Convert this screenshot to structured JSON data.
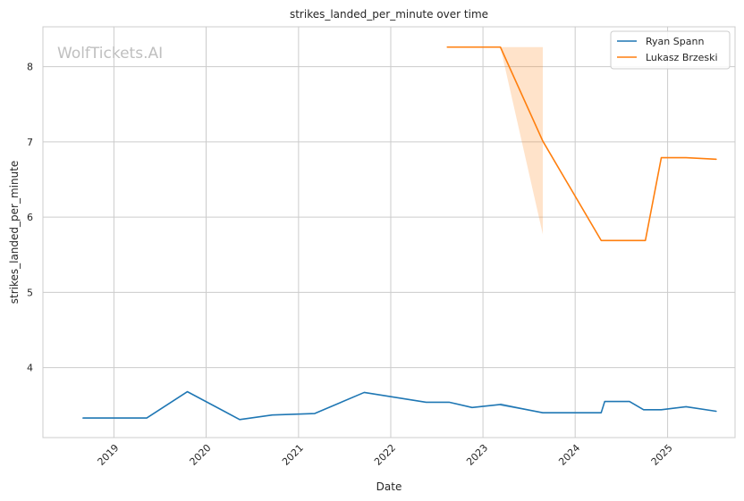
{
  "chart_data": {
    "type": "line",
    "title": "strikes_landed_per_minute over time",
    "xlabel": "Date",
    "ylabel": "strikes_landed_per_minute",
    "watermark": "WolfTickets.AI",
    "xlim": [
      "2018-03-26",
      "2025-09-25"
    ],
    "ylim": [
      3.07,
      8.53
    ],
    "x_ticks": [
      "2019-01-01",
      "2020-01-01",
      "2021-01-01",
      "2022-01-01",
      "2023-01-01",
      "2024-01-01",
      "2025-01-01"
    ],
    "x_tick_labels": [
      "2019",
      "2020",
      "2021",
      "2022",
      "2023",
      "2024",
      "2025"
    ],
    "y_ticks": [
      4,
      5,
      6,
      7,
      8
    ],
    "y_tick_labels": [
      "4",
      "5",
      "6",
      "7",
      "8"
    ],
    "grid": true,
    "legend": "top-right",
    "series": [
      {
        "name": "Ryan Spann",
        "color": "#1f77b4",
        "x": [
          "2018-09-01",
          "2019-05-11",
          "2019-10-19",
          "2020-05-13",
          "2020-09-19",
          "2021-03-06",
          "2021-09-18",
          "2022-05-21",
          "2022-08-20",
          "2022-11-19",
          "2023-03-11",
          "2023-08-26",
          "2024-04-13",
          "2024-04-27",
          "2024-08-03",
          "2024-09-28",
          "2024-12-07",
          "2025-03-15",
          "2025-07-12"
        ],
        "values": [
          3.33,
          3.33,
          3.68,
          3.31,
          3.37,
          3.39,
          3.67,
          3.54,
          3.54,
          3.47,
          3.51,
          3.4,
          3.4,
          3.55,
          3.55,
          3.44,
          3.44,
          3.48,
          3.42
        ],
        "band": [
          {
            "x": "2023-03-11",
            "lower": 3.49,
            "upper": 3.53
          },
          {
            "x": "2023-08-26",
            "lower": 3.4,
            "upper": 3.4
          }
        ]
      },
      {
        "name": "Lukasz Brzeski",
        "color": "#ff7f0e",
        "x": [
          "2022-08-13",
          "2023-03-11",
          "2023-08-26",
          "2024-04-13",
          "2024-10-05",
          "2024-12-07",
          "2025-03-15",
          "2025-07-12"
        ],
        "values": [
          8.26,
          8.26,
          7.01,
          5.69,
          5.69,
          6.79,
          6.79,
          6.77
        ],
        "band": [
          {
            "x": "2023-03-11",
            "lower": 8.26,
            "upper": 8.26
          },
          {
            "x": "2023-08-26",
            "lower": 5.77,
            "upper": 8.26
          }
        ]
      }
    ]
  }
}
